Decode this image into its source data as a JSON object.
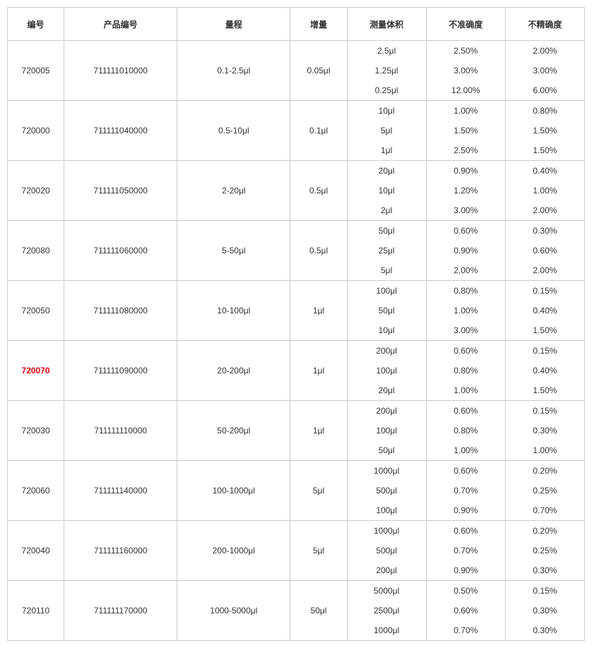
{
  "columns": {
    "id": "编号",
    "product_id": "产品编号",
    "range": "量程",
    "step": "增量",
    "volume": "测量体积",
    "inaccuracy": "不准确度",
    "imprecision": "不精确度"
  },
  "highlight_color": "#e60012",
  "border_color": "#cccccc",
  "rows": [
    {
      "id": "720005",
      "product_id": "711111010000",
      "range": "0.1-2.5μl",
      "step": "0.05μl",
      "highlight": false,
      "sub": [
        {
          "volume": "2.5μl",
          "inaccuracy": "2.50%",
          "imprecision": "2.00%"
        },
        {
          "volume": "1.25μl",
          "inaccuracy": "3.00%",
          "imprecision": "3.00%"
        },
        {
          "volume": "0.25μl",
          "inaccuracy": "12.00%",
          "imprecision": "6.00%"
        }
      ]
    },
    {
      "id": "720000",
      "product_id": "711111040000",
      "range": "0.5-10μl",
      "step": "0.1μl",
      "highlight": false,
      "sub": [
        {
          "volume": "10μl",
          "inaccuracy": "1.00%",
          "imprecision": "0.80%"
        },
        {
          "volume": "5μl",
          "inaccuracy": "1.50%",
          "imprecision": "1.50%"
        },
        {
          "volume": "1μl",
          "inaccuracy": "2.50%",
          "imprecision": "1.50%"
        }
      ]
    },
    {
      "id": "720020",
      "product_id": "711111050000",
      "range": "2-20μl",
      "step": "0.5μl",
      "highlight": false,
      "sub": [
        {
          "volume": "20μl",
          "inaccuracy": "0.90%",
          "imprecision": "0.40%"
        },
        {
          "volume": "10μl",
          "inaccuracy": "1.20%",
          "imprecision": "1.00%"
        },
        {
          "volume": "2μl",
          "inaccuracy": "3.00%",
          "imprecision": "2.00%"
        }
      ]
    },
    {
      "id": "720080",
      "product_id": "711111060000",
      "range": "5-50μl",
      "step": "0.5μl",
      "highlight": false,
      "sub": [
        {
          "volume": "50μl",
          "inaccuracy": "0.60%",
          "imprecision": "0.30%"
        },
        {
          "volume": "25μl",
          "inaccuracy": "0.90%",
          "imprecision": "0.60%"
        },
        {
          "volume": "5μl",
          "inaccuracy": "2.00%",
          "imprecision": "2.00%"
        }
      ]
    },
    {
      "id": "720050",
      "product_id": "711111080000",
      "range": "10-100μl",
      "step": "1μl",
      "highlight": false,
      "sub": [
        {
          "volume": "100μl",
          "inaccuracy": "0.80%",
          "imprecision": "0.15%"
        },
        {
          "volume": "50μl",
          "inaccuracy": "1.00%",
          "imprecision": "0.40%"
        },
        {
          "volume": "10μl",
          "inaccuracy": "3.00%",
          "imprecision": "1.50%"
        }
      ]
    },
    {
      "id": "720070",
      "product_id": "711111090000",
      "range": "20-200μl",
      "step": "1μl",
      "highlight": true,
      "sub": [
        {
          "volume": "200μl",
          "inaccuracy": "0.60%",
          "imprecision": "0.15%"
        },
        {
          "volume": "100μl",
          "inaccuracy": "0.80%",
          "imprecision": "0.40%"
        },
        {
          "volume": "20μl",
          "inaccuracy": "1.00%",
          "imprecision": "1.50%"
        }
      ]
    },
    {
      "id": "720030",
      "product_id": "711111110000",
      "range": "50-200μl",
      "step": "1μl",
      "highlight": false,
      "sub": [
        {
          "volume": "200μl",
          "inaccuracy": "0.60%",
          "imprecision": "0.15%"
        },
        {
          "volume": "100μl",
          "inaccuracy": "0.80%",
          "imprecision": "0.30%"
        },
        {
          "volume": "50μl",
          "inaccuracy": "1.00%",
          "imprecision": "1.00%"
        }
      ]
    },
    {
      "id": "720060",
      "product_id": "711111140000",
      "range": "100-1000μl",
      "step": "5μl",
      "highlight": false,
      "sub": [
        {
          "volume": "1000μl",
          "inaccuracy": "0.60%",
          "imprecision": "0.20%"
        },
        {
          "volume": "500μl",
          "inaccuracy": "0.70%",
          "imprecision": "0.25%"
        },
        {
          "volume": "100μl",
          "inaccuracy": "0.90%",
          "imprecision": "0.70%"
        }
      ]
    },
    {
      "id": "720040",
      "product_id": "711111160000",
      "range": "200-1000μl",
      "step": "5μl",
      "highlight": false,
      "sub": [
        {
          "volume": "1000μl",
          "inaccuracy": "0.60%",
          "imprecision": "0.20%"
        },
        {
          "volume": "500μl",
          "inaccuracy": "0.70%",
          "imprecision": "0.25%"
        },
        {
          "volume": "200μl",
          "inaccuracy": "0.90%",
          "imprecision": "0.30%"
        }
      ]
    },
    {
      "id": "720110",
      "product_id": "711111170000",
      "range": "1000-5000μl",
      "step": "50μl",
      "highlight": false,
      "sub": [
        {
          "volume": "5000μl",
          "inaccuracy": "0.50%",
          "imprecision": "0.15%"
        },
        {
          "volume": "2500μl",
          "inaccuracy": "0.60%",
          "imprecision": "0.30%"
        },
        {
          "volume": "1000μl",
          "inaccuracy": "0.70%",
          "imprecision": "0.30%"
        }
      ]
    }
  ]
}
